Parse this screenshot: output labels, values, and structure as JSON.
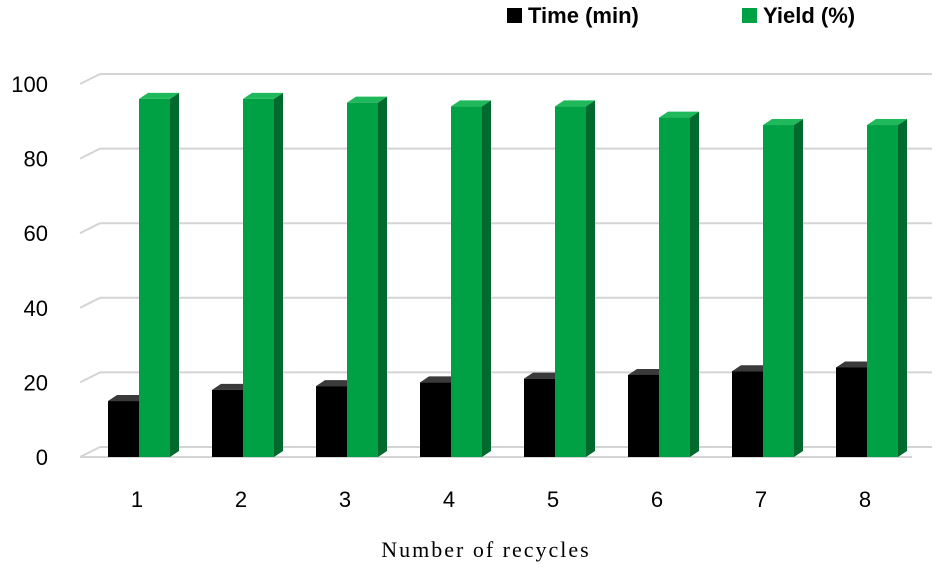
{
  "chart_data": {
    "type": "bar",
    "categories": [
      "1",
      "2",
      "3",
      "4",
      "5",
      "6",
      "7",
      "8"
    ],
    "series": [
      {
        "name": "Time (min)",
        "values": [
          15,
          18,
          19,
          20,
          21,
          22,
          23,
          24
        ],
        "color": "#000000",
        "side_color": "#2b2b2b",
        "top_color": "#3a3a3a"
      },
      {
        "name": "Yield (%)",
        "values": [
          96,
          96,
          95,
          94,
          94,
          91,
          89,
          89
        ],
        "color": "#00a145",
        "side_color": "#00692e",
        "top_color": "#1fb85a"
      }
    ],
    "xlabel": "Number of recycles",
    "ylabel": "",
    "ylim": [
      0,
      100
    ],
    "yticks": [
      "0",
      "20",
      "40",
      "60",
      "80",
      "100"
    ],
    "grid": true,
    "legend_position": "top-right",
    "style": "3d-bar"
  }
}
